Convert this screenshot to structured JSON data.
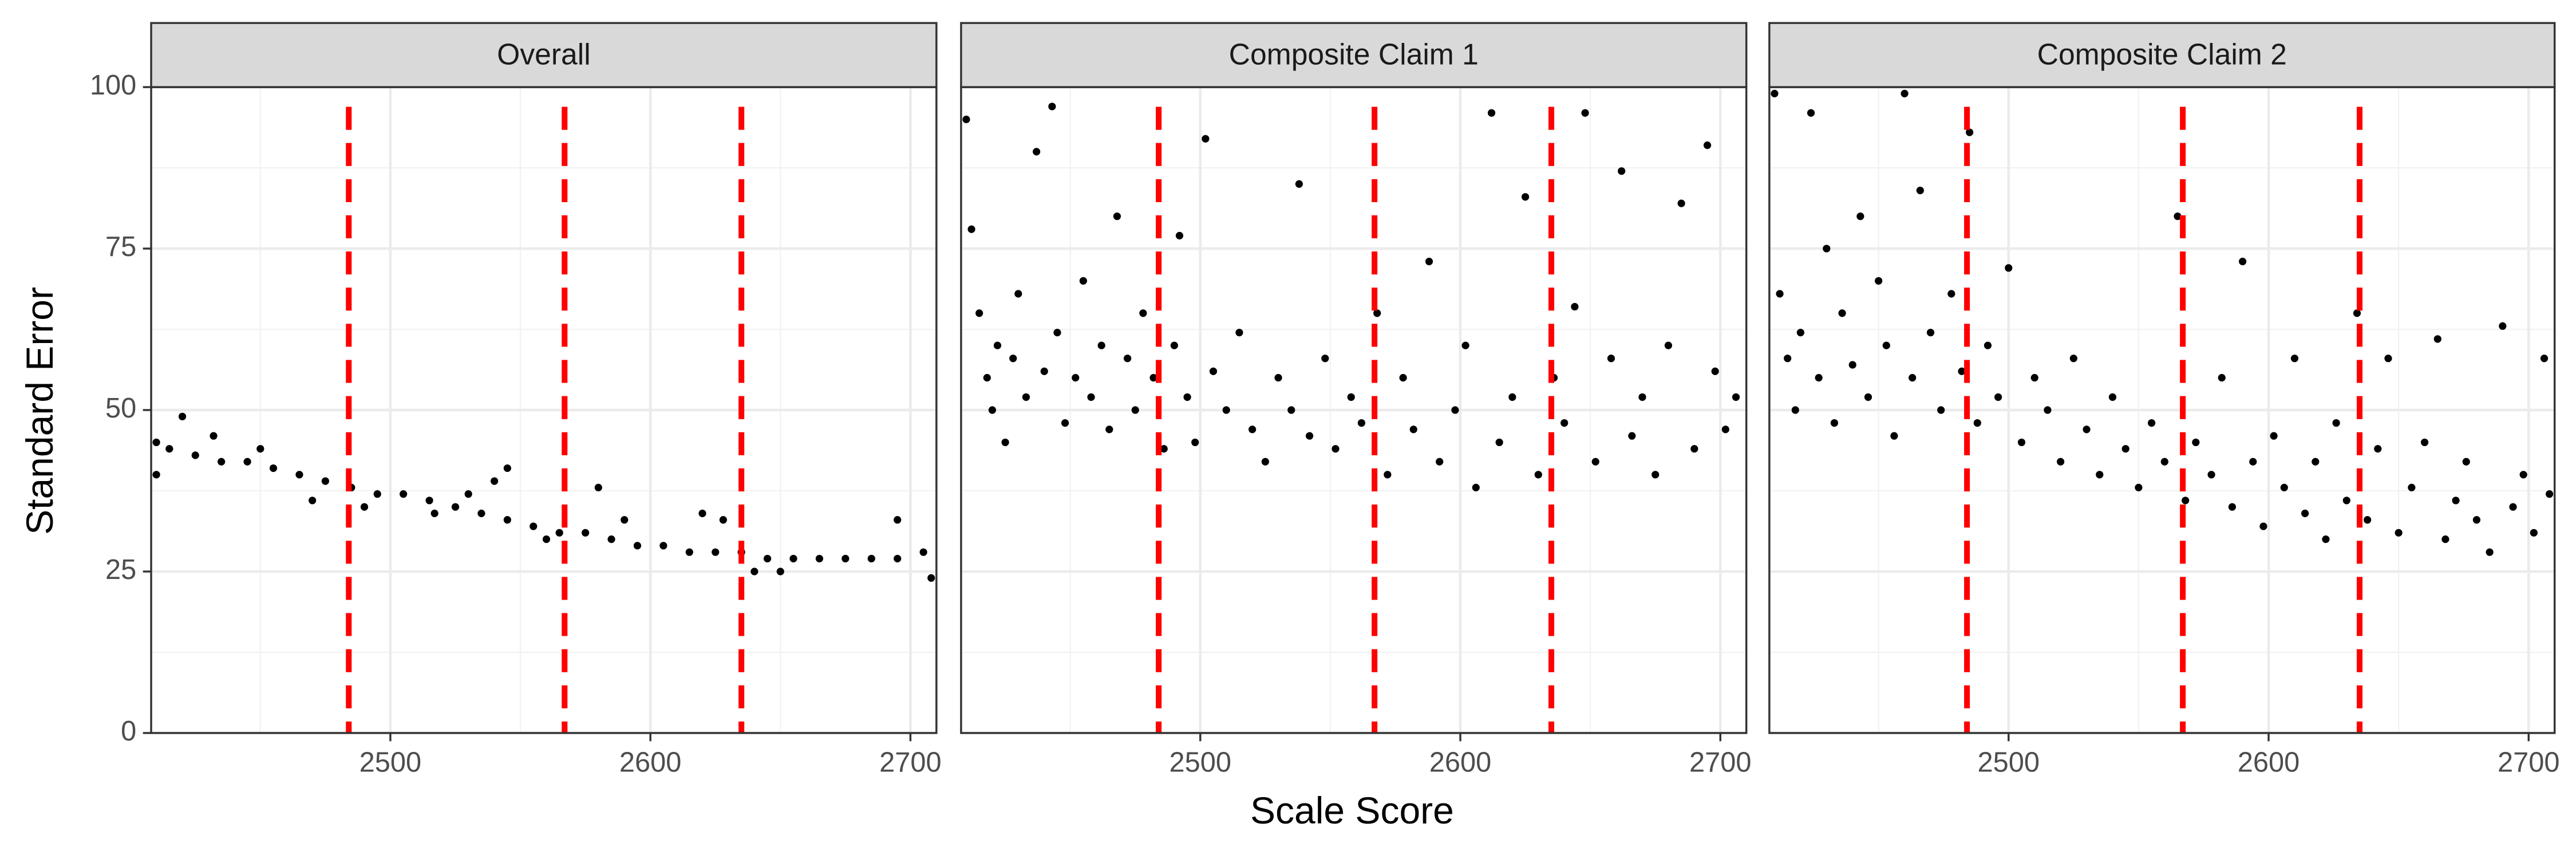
{
  "chart_data": [
    {
      "type": "scatter",
      "title": "Overall",
      "ylabel": "Standard Error",
      "color": "#000000",
      "xlim": [
        2408,
        2710
      ],
      "ylim": [
        0,
        100
      ],
      "xticks": [
        2500,
        2600,
        2700
      ],
      "yticks": [
        0,
        25,
        50,
        75,
        100
      ],
      "x_minor_grid": [
        2450,
        2550,
        2650
      ],
      "y_minor_grid": [
        12.5,
        37.5,
        62.5,
        87.5
      ],
      "grid": true,
      "vlines": [
        2484,
        2567,
        2635
      ],
      "vline_color": "#ff0000",
      "x": [
        2410,
        2415,
        2425,
        2435,
        2445,
        2455,
        2465,
        2475,
        2485,
        2495,
        2505,
        2515,
        2525,
        2535,
        2545,
        2555,
        2565,
        2575,
        2585,
        2595,
        2605,
        2615,
        2625,
        2635,
        2645,
        2655,
        2665,
        2675,
        2685,
        2695,
        2705,
        2410,
        2420,
        2432,
        2450,
        2470,
        2490,
        2530,
        2540,
        2545,
        2560,
        2580,
        2590,
        2620,
        2628,
        2640,
        2650,
        2695,
        2708,
        2517
      ],
      "values": [
        45,
        44,
        43,
        42,
        42,
        41,
        40,
        39,
        38,
        37,
        37,
        36,
        35,
        34,
        33,
        32,
        31,
        31,
        30,
        29,
        29,
        28,
        28,
        28,
        27,
        27,
        27,
        27,
        27,
        27,
        28,
        40,
        49,
        46,
        44,
        36,
        35,
        37,
        39,
        41,
        30,
        38,
        33,
        34,
        33,
        25,
        25,
        33,
        24,
        34
      ]
    },
    {
      "type": "scatter",
      "title": "Composite Claim 1",
      "xlabel": "Scale Score",
      "color": "#000000",
      "xlim": [
        2408,
        2710
      ],
      "ylim": [
        0,
        100
      ],
      "xticks": [
        2500,
        2600,
        2700
      ],
      "yticks": [
        0,
        25,
        50,
        75,
        100
      ],
      "x_minor_grid": [
        2450,
        2550,
        2650
      ],
      "y_minor_grid": [
        12.5,
        37.5,
        62.5,
        87.5
      ],
      "grid": true,
      "vlines": [
        2484,
        2567,
        2635
      ],
      "vline_color": "#ff0000",
      "x": [
        2410,
        2412,
        2415,
        2418,
        2420,
        2422,
        2425,
        2428,
        2430,
        2433,
        2437,
        2440,
        2443,
        2445,
        2448,
        2452,
        2455,
        2458,
        2462,
        2465,
        2468,
        2472,
        2475,
        2478,
        2482,
        2486,
        2490,
        2492,
        2495,
        2498,
        2502,
        2505,
        2510,
        2515,
        2520,
        2525,
        2530,
        2535,
        2538,
        2542,
        2548,
        2552,
        2558,
        2562,
        2568,
        2572,
        2578,
        2582,
        2588,
        2592,
        2598,
        2602,
        2606,
        2612,
        2615,
        2620,
        2625,
        2630,
        2636,
        2640,
        2644,
        2648,
        2652,
        2658,
        2662,
        2666,
        2670,
        2675,
        2680,
        2685,
        2690,
        2695,
        2698,
        2702,
        2706
      ],
      "values": [
        95,
        78,
        65,
        55,
        50,
        60,
        45,
        58,
        68,
        52,
        90,
        56,
        97,
        62,
        48,
        55,
        70,
        52,
        60,
        47,
        80,
        58,
        50,
        65,
        55,
        44,
        60,
        77,
        52,
        45,
        92,
        56,
        50,
        62,
        47,
        42,
        55,
        50,
        85,
        46,
        58,
        44,
        52,
        48,
        65,
        40,
        55,
        47,
        73,
        42,
        50,
        60,
        38,
        96,
        45,
        52,
        83,
        40,
        55,
        48,
        66,
        96,
        42,
        58,
        87,
        46,
        52,
        40,
        60,
        82,
        44,
        91,
        56,
        47,
        52
      ]
    },
    {
      "type": "scatter",
      "title": "Composite Claim 2",
      "color": "#000000",
      "xlim": [
        2408,
        2710
      ],
      "ylim": [
        0,
        100
      ],
      "xticks": [
        2500,
        2600,
        2700
      ],
      "yticks": [
        0,
        25,
        50,
        75,
        100
      ],
      "x_minor_grid": [
        2450,
        2550,
        2650
      ],
      "y_minor_grid": [
        12.5,
        37.5,
        62.5,
        87.5
      ],
      "grid": true,
      "vlines": [
        2484,
        2567,
        2635
      ],
      "vline_color": "#ff0000",
      "x": [
        2410,
        2412,
        2415,
        2418,
        2420,
        2424,
        2427,
        2430,
        2433,
        2436,
        2440,
        2443,
        2446,
        2450,
        2453,
        2456,
        2460,
        2463,
        2466,
        2470,
        2474,
        2478,
        2482,
        2485,
        2488,
        2492,
        2496,
        2500,
        2505,
        2510,
        2515,
        2520,
        2525,
        2530,
        2535,
        2540,
        2545,
        2550,
        2555,
        2560,
        2565,
        2568,
        2572,
        2578,
        2582,
        2586,
        2590,
        2594,
        2598,
        2602,
        2606,
        2610,
        2614,
        2618,
        2622,
        2626,
        2630,
        2634,
        2638,
        2642,
        2646,
        2650,
        2655,
        2660,
        2665,
        2668,
        2672,
        2676,
        2680,
        2685,
        2690,
        2694,
        2698,
        2702,
        2706,
        2708
      ],
      "values": [
        99,
        68,
        58,
        50,
        62,
        96,
        55,
        75,
        48,
        65,
        57,
        80,
        52,
        70,
        60,
        46,
        99,
        55,
        84,
        62,
        50,
        68,
        56,
        93,
        48,
        60,
        52,
        72,
        45,
        55,
        50,
        42,
        58,
        47,
        40,
        52,
        44,
        38,
        48,
        42,
        80,
        36,
        45,
        40,
        55,
        35,
        73,
        42,
        32,
        46,
        38,
        58,
        34,
        42,
        30,
        48,
        36,
        65,
        33,
        44,
        58,
        31,
        38,
        45,
        61,
        30,
        36,
        42,
        33,
        28,
        63,
        35,
        40,
        31,
        58,
        37
      ]
    }
  ]
}
